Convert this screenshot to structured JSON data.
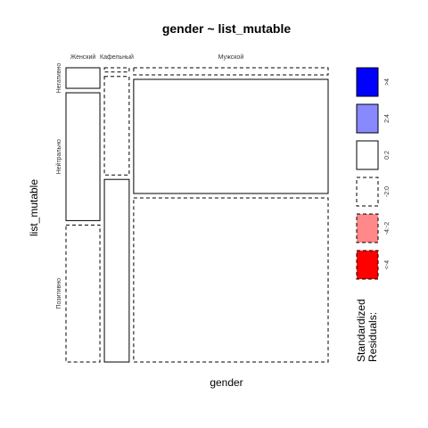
{
  "chart_data": {
    "type": "mosaic",
    "title": "gender ~ list_mutable",
    "xlabel": "gender",
    "ylabel": "list_mutable",
    "x_categories": [
      "Женский",
      "Кафельный",
      "Мужской"
    ],
    "y_categories": [
      "Негативно",
      "Нейтрально",
      "Позитивно"
    ],
    "column_proportions": [
      0.134,
      0.098,
      0.768
    ],
    "cell_proportions": [
      [
        0.072,
        0.448,
        0.48
      ],
      [
        0.015,
        0.345,
        0.64
      ],
      [
        0.025,
        0.4,
        0.575
      ]
    ],
    "cell_residual_class": [
      [
        "0:2",
        "0:2",
        "-2:0"
      ],
      [
        "-2:0",
        "-2:0",
        "0:2"
      ],
      [
        "-2:0",
        "0:2",
        "-2:0"
      ]
    ],
    "legend": {
      "title_line1": "Standardized",
      "title_line2": "Residuals:",
      "items": [
        {
          "label": ">4",
          "fill": "#0000ff",
          "dashed": false
        },
        {
          "label": "2:4",
          "fill": "#8888ff",
          "dashed": false
        },
        {
          "label": "0:2",
          "fill": "#ffffff",
          "dashed": false
        },
        {
          "label": "-2:0",
          "fill": "#ffffff",
          "dashed": true
        },
        {
          "label": "-4:-2",
          "fill": "#ff8888",
          "dashed": true
        },
        {
          "label": "<-4",
          "fill": "#ff0000",
          "dashed": true
        }
      ]
    }
  }
}
